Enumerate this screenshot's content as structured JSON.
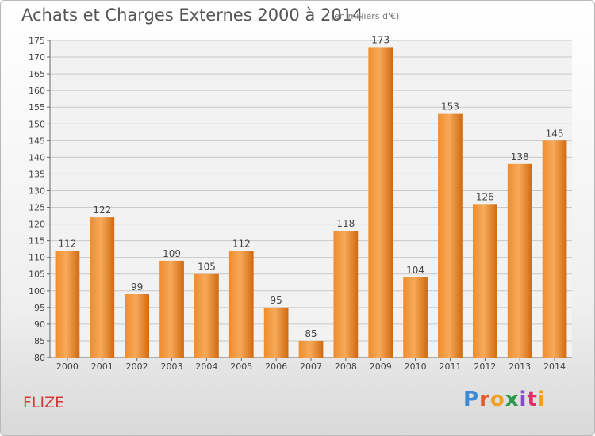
{
  "title": "Achats et Charges Externes 2000 à 2014",
  "subtitle": "(en milliers d'€)",
  "location": "FLIZE",
  "logo": {
    "p": "P",
    "r": "r",
    "o": "o",
    "x": "x",
    "i": "i",
    "t": "t",
    "i2": "i"
  },
  "colors": {
    "bar": "#f08c2c",
    "bar_light": "#f7aa5a",
    "bar_dark": "#d06a10",
    "grid": "#c8c8c8",
    "plot_bg": "#f2f2f2"
  },
  "chart_data": {
    "type": "bar",
    "categories": [
      "2000",
      "2001",
      "2002",
      "2003",
      "2004",
      "2005",
      "2006",
      "2007",
      "2008",
      "2009",
      "2010",
      "2011",
      "2012",
      "2013",
      "2014"
    ],
    "values": [
      112,
      122,
      99,
      109,
      105,
      112,
      95,
      85,
      118,
      173,
      104,
      153,
      126,
      138,
      145
    ],
    "ylim": [
      80,
      175
    ],
    "yticks": [
      80,
      85,
      90,
      95,
      100,
      105,
      110,
      115,
      120,
      125,
      130,
      135,
      140,
      145,
      150,
      155,
      160,
      165,
      170,
      175
    ],
    "grid": true,
    "legend": "none"
  }
}
